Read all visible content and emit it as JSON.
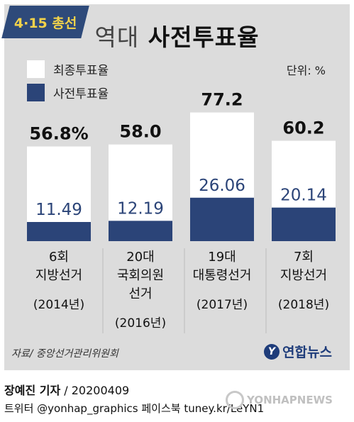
{
  "badge": "4·15 총선",
  "title": {
    "light": "역대",
    "bold": "사전투표율"
  },
  "unit": "단위: %",
  "colors": {
    "final": "#ffffff",
    "early": "#2b4478",
    "panel": "#dcdcdc",
    "badge": "#2e4a7a",
    "badge_text": "#f3d34a"
  },
  "chart_data": {
    "type": "bar",
    "categories": [
      {
        "lines": [
          "6회",
          "지방선거"
        ],
        "year": "(2014년)"
      },
      {
        "lines": [
          "20대",
          "국회의원",
          "선거"
        ],
        "year": "(2016년)"
      },
      {
        "lines": [
          "19대",
          "대통령선거"
        ],
        "year": "(2017년)"
      },
      {
        "lines": [
          "7회",
          "지방선거"
        ],
        "year": "(2018년)"
      }
    ],
    "series": [
      {
        "name": "최종투표율",
        "values": [
          56.8,
          58.0,
          77.2,
          60.2
        ],
        "labels": [
          "56.8%",
          "58.0",
          "77.2",
          "60.2"
        ]
      },
      {
        "name": "사전투표율",
        "values": [
          11.49,
          12.19,
          26.06,
          20.14
        ],
        "labels": [
          "11.49",
          "12.19",
          "26.06",
          "20.14"
        ]
      }
    ],
    "ylim": [
      0,
      100
    ],
    "legend_position": "top-left",
    "grid": false
  },
  "source": "자료/ 중앙선거관리위원회",
  "logo": {
    "mark": "Y",
    "text": "연합뉴스"
  },
  "credit": {
    "name": "장예진 기자",
    "date": " / 20200409"
  },
  "social": "트위터 @yonhap_graphics  페이스북 tuney.kr/LeYN1",
  "watermark": "YONHAPNEWS"
}
